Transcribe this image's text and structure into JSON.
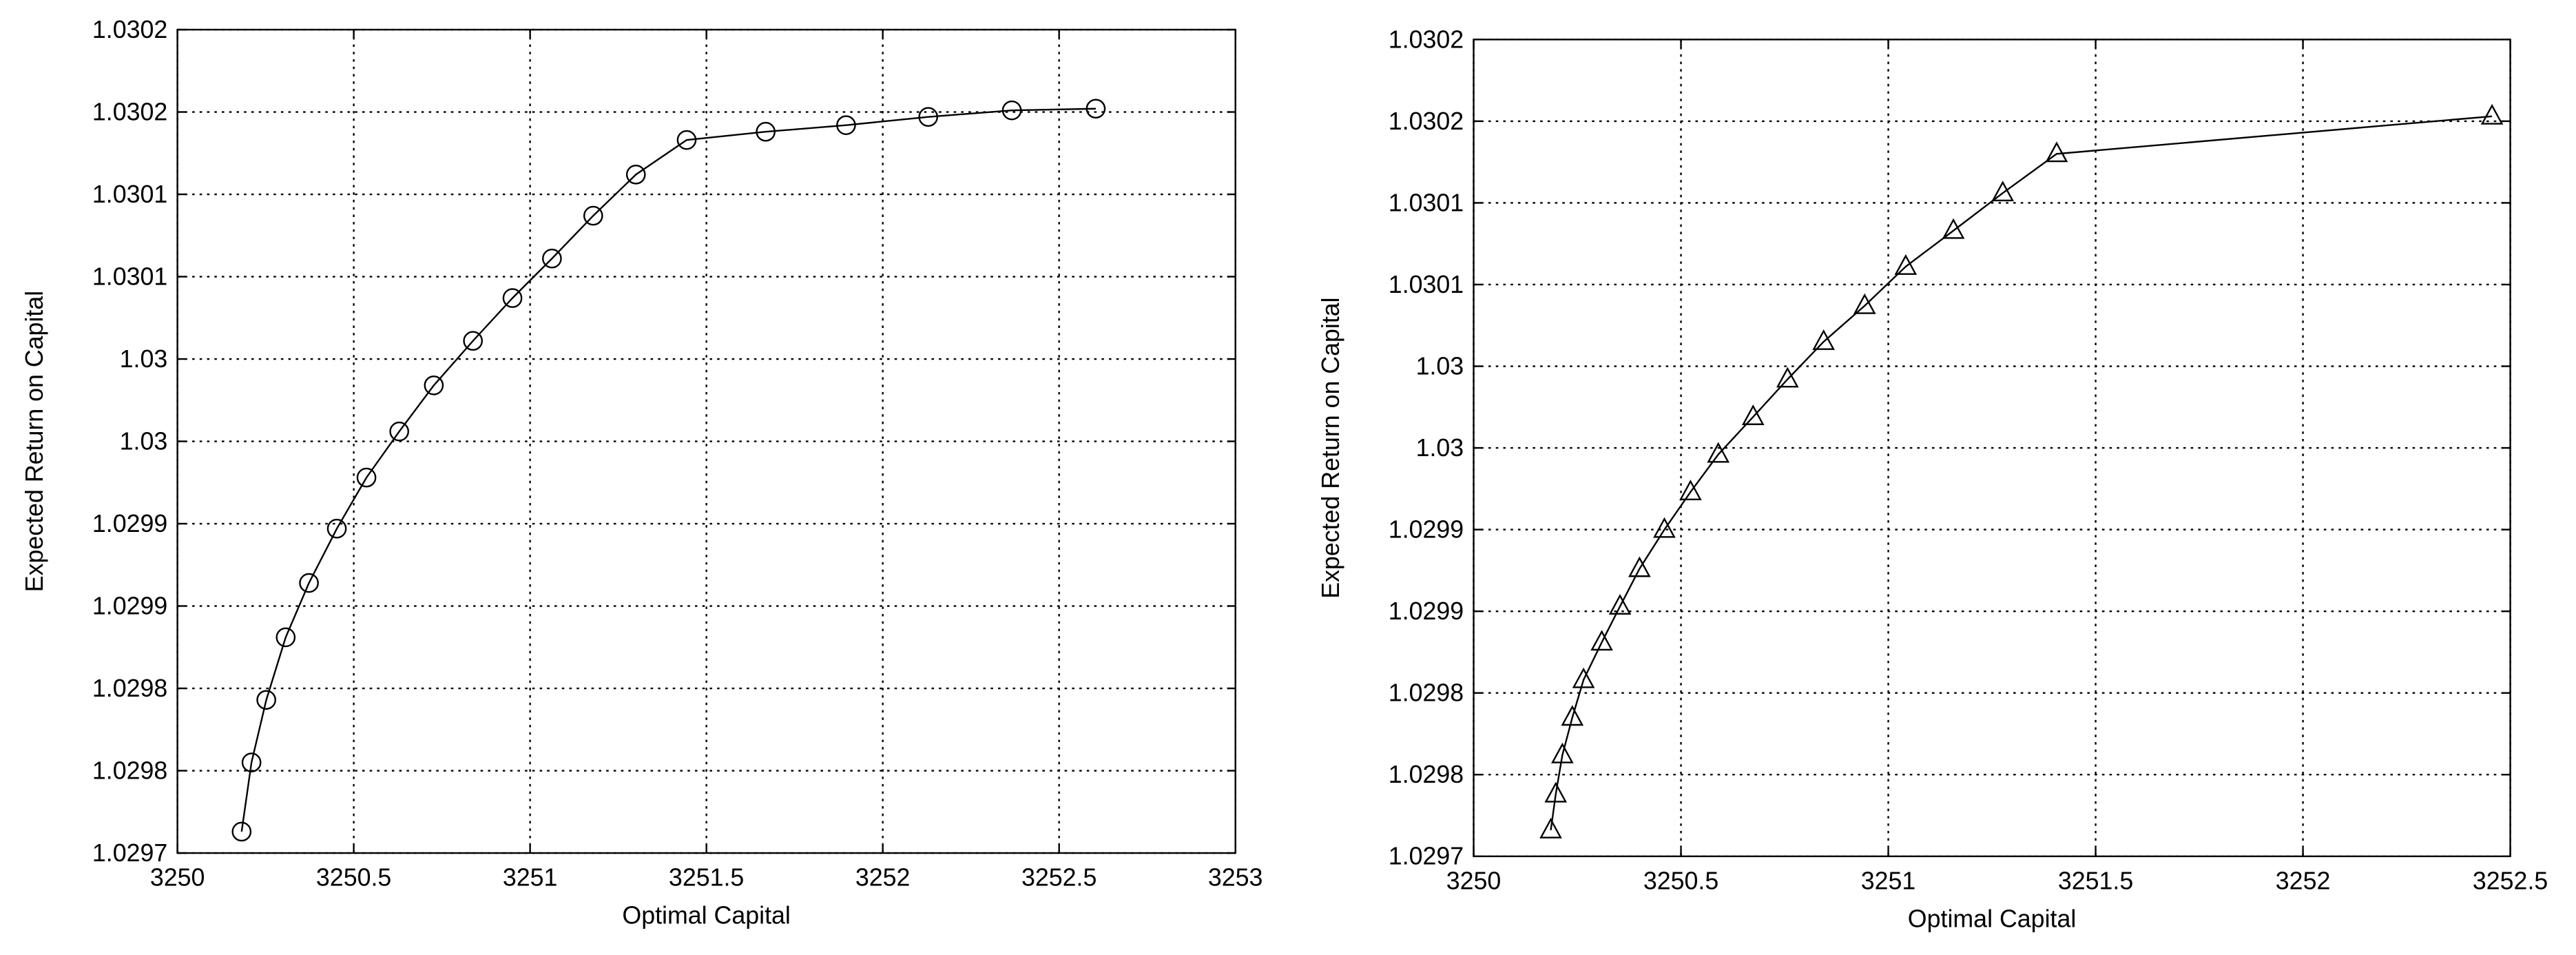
{
  "chart_data": [
    {
      "type": "line",
      "marker": "circle",
      "color": "#000000",
      "grid": true,
      "xlabel": "Optimal Capital",
      "ylabel": "Expected Return on Capital",
      "x": [
        3250.182,
        3250.21,
        3250.252,
        3250.307,
        3250.373,
        3250.452,
        3250.536,
        3250.629,
        3250.727,
        3250.838,
        3250.95,
        3251.062,
        3251.179,
        3251.3,
        3251.444,
        3251.668,
        3251.896,
        3252.129,
        3252.366,
        3252.604
      ],
      "values": [
        1.029713,
        1.029755,
        1.029793,
        1.029831,
        1.029864,
        1.029897,
        1.029928,
        1.029956,
        1.029984,
        1.030011,
        1.030037,
        1.030061,
        1.030087,
        1.030112,
        1.030133,
        1.030138,
        1.030142,
        1.030147,
        1.030151,
        1.030152
      ],
      "xlim": [
        3250,
        3253
      ],
      "xticks": [
        3250,
        3250.5,
        3251,
        3251.5,
        3252,
        3252.5,
        3253
      ],
      "ylim": [
        1.0297,
        1.0302
      ],
      "yticks": [
        {
          "value": 1.0297,
          "label": "1.0297"
        },
        {
          "value": 1.02975,
          "label": "1.0298"
        },
        {
          "value": 1.0298,
          "label": "1.0298"
        },
        {
          "value": 1.02985,
          "label": "1.0299"
        },
        {
          "value": 1.0299,
          "label": "1.0299"
        },
        {
          "value": 1.02995,
          "label": "1.03"
        },
        {
          "value": 1.03,
          "label": "1.03"
        },
        {
          "value": 1.03005,
          "label": "1.0301"
        },
        {
          "value": 1.0301,
          "label": "1.0301"
        },
        {
          "value": 1.03015,
          "label": "1.0302"
        },
        {
          "value": 1.0302,
          "label": "1.0302"
        }
      ]
    },
    {
      "type": "line",
      "marker": "triangle",
      "color": "#000000",
      "grid": true,
      "xlabel": "Optimal Capital",
      "ylabel": "Expected Return on Capital",
      "x": [
        3250.186,
        3250.198,
        3250.214,
        3250.238,
        3250.265,
        3250.309,
        3250.353,
        3250.4,
        3250.46,
        3250.523,
        3250.59,
        3250.674,
        3250.757,
        3250.844,
        3250.943,
        3251.042,
        3251.157,
        3251.276,
        3251.406,
        3252.456
      ],
      "values": [
        1.029716,
        1.029738,
        1.029762,
        1.029785,
        1.029808,
        1.029831,
        1.029853,
        1.029876,
        1.0299,
        1.029923,
        1.029946,
        1.029969,
        1.029992,
        1.030015,
        1.030037,
        1.030061,
        1.030083,
        1.030106,
        1.03013,
        1.030153
      ],
      "xlim": [
        3250,
        3252.5
      ],
      "xticks": [
        3250,
        3250.5,
        3251,
        3251.5,
        3252,
        3252.5
      ],
      "ylim": [
        1.0297,
        1.0302
      ],
      "yticks": [
        {
          "value": 1.0297,
          "label": "1.0297"
        },
        {
          "value": 1.02975,
          "label": "1.0298"
        },
        {
          "value": 1.0298,
          "label": "1.0298"
        },
        {
          "value": 1.02985,
          "label": "1.0299"
        },
        {
          "value": 1.0299,
          "label": "1.0299"
        },
        {
          "value": 1.02995,
          "label": "1.03"
        },
        {
          "value": 1.03,
          "label": "1.03"
        },
        {
          "value": 1.03005,
          "label": "1.0301"
        },
        {
          "value": 1.0301,
          "label": "1.0301"
        },
        {
          "value": 1.03015,
          "label": "1.0302"
        },
        {
          "value": 1.0302,
          "label": "1.0302"
        }
      ]
    }
  ]
}
